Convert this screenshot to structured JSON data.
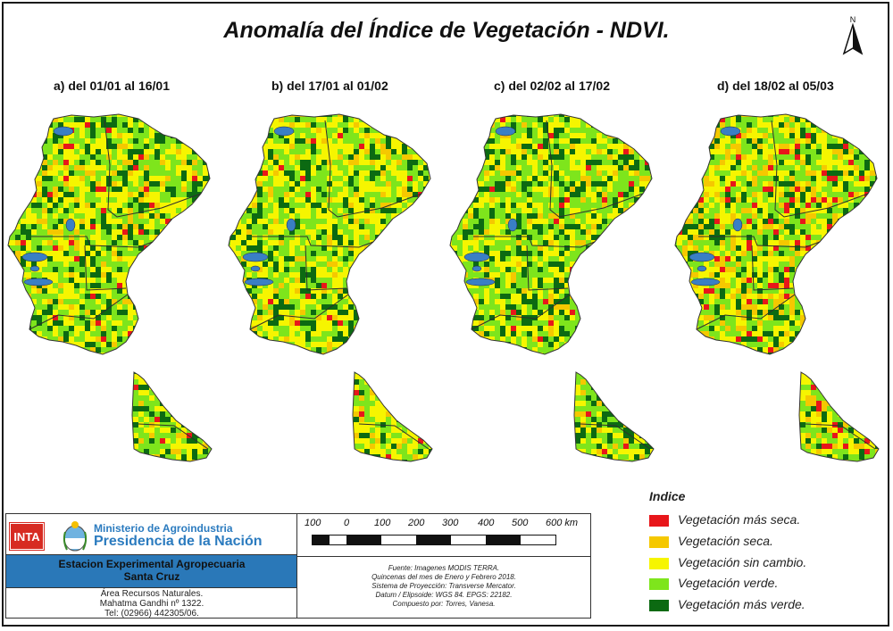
{
  "title": "Anomalía del Índice de Vegetación - NDVI.",
  "north_label": "N",
  "panels": [
    {
      "label": "a) del 01/01  al 16/01"
    },
    {
      "label": "b) del 17/01 al 01/02"
    },
    {
      "label": "c) del 02/02 al 17/02"
    },
    {
      "label": "d) del 18/02 al 05/03"
    }
  ],
  "legend": {
    "title": "Indice",
    "items": [
      {
        "label": "Vegetación más seca.",
        "color": "#e8161a"
      },
      {
        "label": "Vegetación seca.",
        "color": "#f5c800"
      },
      {
        "label": "Vegetación sin cambio.",
        "color": "#f6f500"
      },
      {
        "label": "Vegetación verde.",
        "color": "#7ee51c"
      },
      {
        "label": "Vegetación más verde.",
        "color": "#0c6a12"
      }
    ]
  },
  "scale": {
    "ticks": [
      "100",
      "0",
      "100",
      "200",
      "300",
      "400",
      "500",
      "600 km"
    ]
  },
  "source": {
    "lines": [
      "Fuente: Imagenes MODIS TERRA.",
      "Quincenas del mes de Enero y Febrero 2018.",
      "Sistema de Proyección: Transverse Mercator.",
      "Datum / Elipsoide: WGS 84. EPGS: 22182.",
      "Compuesto por: Torres, Vanesa."
    ]
  },
  "institution": {
    "inta": "INTA",
    "ministry": "Ministerio de Agroindustria",
    "presidency": "Presidencia de la Nación",
    "station_line1": "Estacion Experimental Agropecuaria",
    "station_line2": "Santa Cruz",
    "address": [
      "Área Recursos Naturales.",
      "Mahatma Gandhi nº 1322.",
      "Tel: (02966) 442305/06."
    ]
  },
  "colors": {
    "accent_blue": "#2a78b8",
    "lake_blue": "#3a7fc4"
  }
}
